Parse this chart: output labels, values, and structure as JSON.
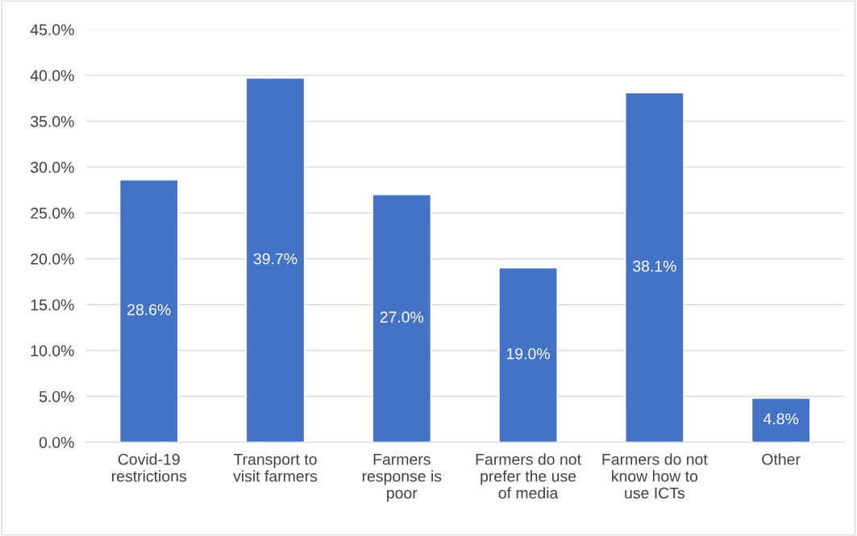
{
  "chart_data": {
    "type": "bar",
    "categories": [
      "Covid-19\nrestrictions",
      "Transport to\nvisit farmers",
      "Farmers\nresponse is\npoor",
      "Farmers do not\nprefer the use\nof media",
      "Farmers do not\nknow how to\nuse ICTs",
      "Other"
    ],
    "values": [
      28.6,
      39.7,
      27.0,
      19.0,
      38.1,
      4.8
    ],
    "value_labels": [
      "28.6%",
      "39.7%",
      "27.0%",
      "19.0%",
      "38.1%",
      "4.8%"
    ],
    "color": "#4472c4",
    "ylim": [
      0,
      45
    ],
    "yticks": [
      {
        "value": 0,
        "label": "0.0%"
      },
      {
        "value": 5,
        "label": "5.0%"
      },
      {
        "value": 10,
        "label": "10.0%"
      },
      {
        "value": 15,
        "label": "15.0%"
      },
      {
        "value": 20,
        "label": "20.0%"
      },
      {
        "value": 25,
        "label": "25.0%"
      },
      {
        "value": 30,
        "label": "30.0%"
      },
      {
        "value": 35,
        "label": "35.0%"
      },
      {
        "value": 40,
        "label": "40.0%"
      },
      {
        "value": 45,
        "label": "45.0%"
      }
    ],
    "grid": "y",
    "legend": false
  }
}
